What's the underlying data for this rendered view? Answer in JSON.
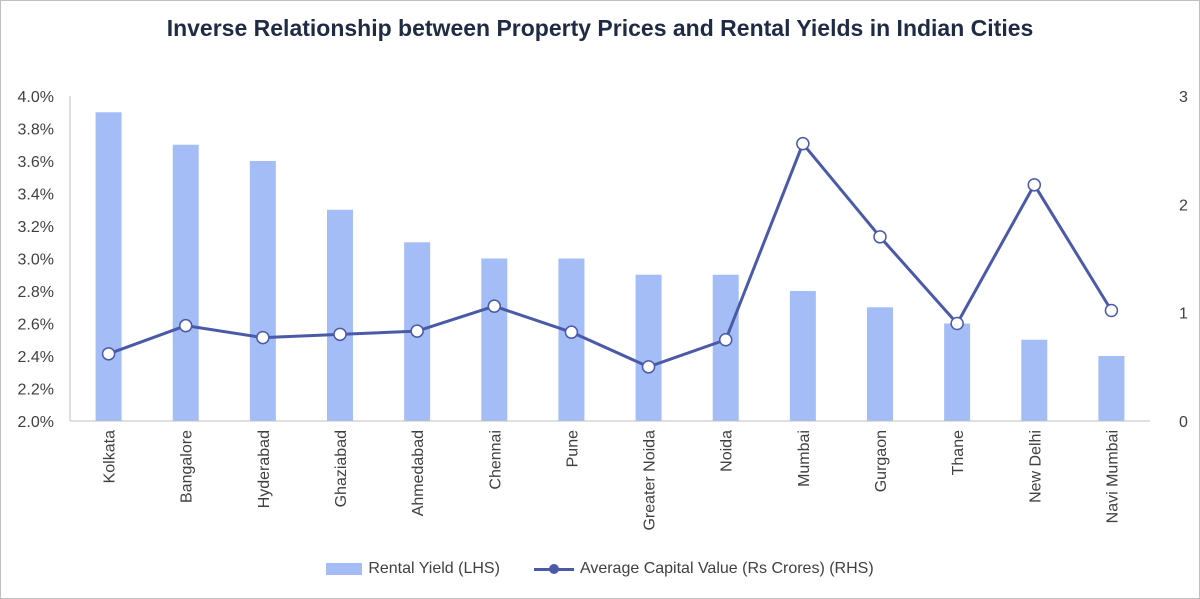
{
  "chart_data": {
    "type": "bar+line",
    "title": "Inverse Relationship between Property Prices and Rental Yields in Indian Cities",
    "categories": [
      "Kolkata",
      "Bangalore",
      "Hyderabad",
      "Ghaziabad",
      "Ahmedabad",
      "Chennai",
      "Pune",
      "Greater Noida",
      "Noida",
      "Mumbai",
      "Gurgaon",
      "Thane",
      "New Delhi",
      "Navi Mumbai"
    ],
    "series": [
      {
        "name": "Rental Yield (LHS)",
        "type": "bar",
        "axis": "left",
        "color": "#a5bdf7",
        "values": [
          3.9,
          3.7,
          3.6,
          3.3,
          3.1,
          3.0,
          3.0,
          2.9,
          2.9,
          2.8,
          2.7,
          2.6,
          2.5,
          2.4
        ]
      },
      {
        "name": "Average Capital Value (Rs Crores) (RHS)",
        "type": "line",
        "axis": "right",
        "color": "#4a5aa8",
        "values": [
          0.62,
          0.88,
          0.77,
          0.8,
          0.83,
          1.06,
          0.82,
          0.5,
          0.75,
          2.56,
          1.7,
          0.9,
          2.18,
          1.02
        ]
      }
    ],
    "y_left": {
      "min": 2.0,
      "max": 4.0,
      "step": 0.2,
      "ticks": [
        "2.0%",
        "2.2%",
        "2.4%",
        "2.6%",
        "2.8%",
        "3.0%",
        "3.2%",
        "3.4%",
        "3.6%",
        "3.8%",
        "4.0%"
      ]
    },
    "y_right": {
      "min": 0,
      "max": 3,
      "step": 1,
      "ticks": [
        "0",
        "1",
        "2",
        "3"
      ]
    },
    "grid": false,
    "legend_position": "bottom"
  }
}
